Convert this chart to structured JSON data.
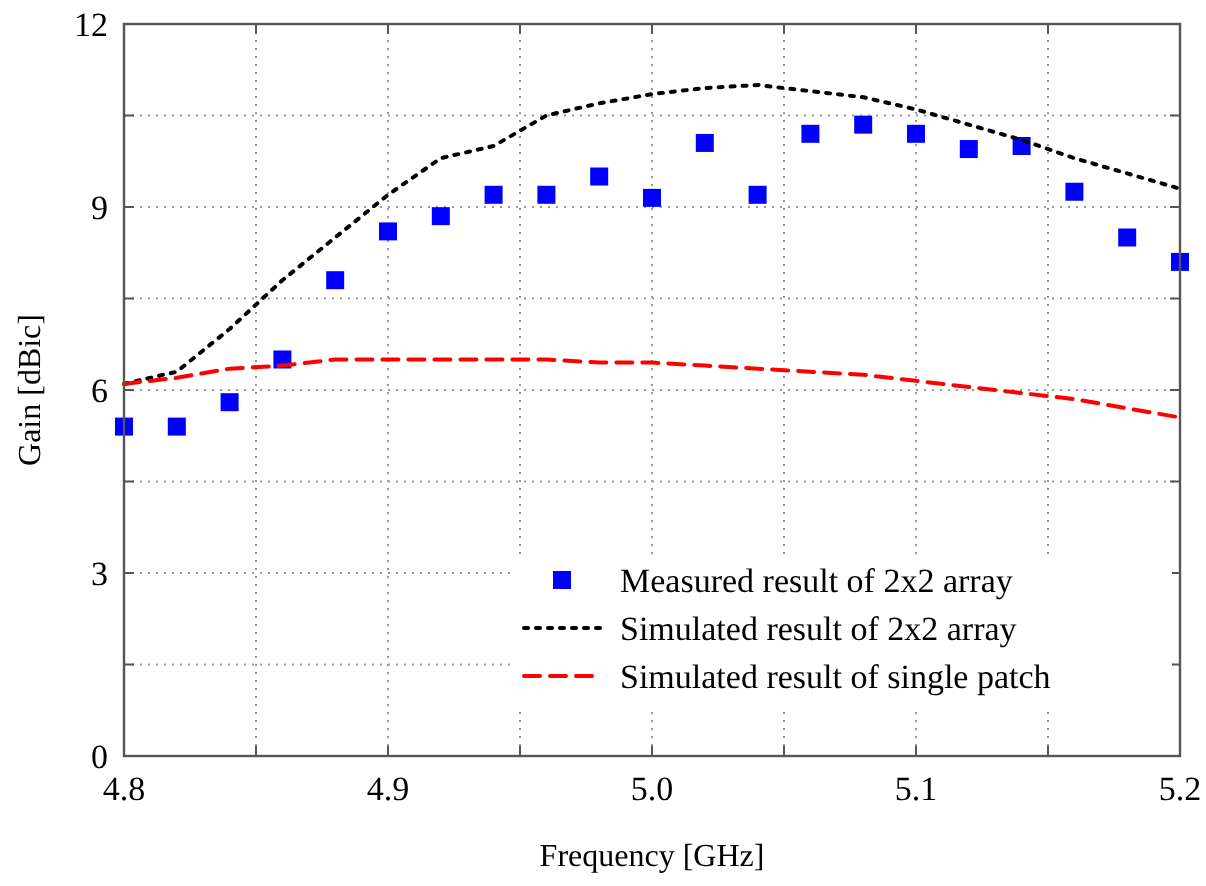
{
  "chart_data": {
    "type": "scatter",
    "xlabel": "Frequency [GHz]",
    "ylabel": "Gain [dBic]",
    "x": [
      4.8,
      4.82,
      4.84,
      4.86,
      4.88,
      4.9,
      4.92,
      4.94,
      4.96,
      4.98,
      5.0,
      5.02,
      5.04,
      5.06,
      5.08,
      5.1,
      5.12,
      5.14,
      5.16,
      5.18,
      5.2
    ],
    "series": [
      {
        "name": "Measured result of 2x2 array",
        "marker": "square",
        "color": "#0000ff",
        "values": [
          5.4,
          5.4,
          5.8,
          6.5,
          7.8,
          8.6,
          8.85,
          9.2,
          9.2,
          9.5,
          9.15,
          10.05,
          9.2,
          10.2,
          10.35,
          10.2,
          9.95,
          10.0,
          9.25,
          8.5,
          8.1
        ]
      },
      {
        "name": "Simulated result of 2x2 array",
        "type": "line",
        "line_style": "dotted",
        "color": "#000000",
        "values": [
          6.1,
          6.3,
          7.0,
          7.8,
          8.5,
          9.2,
          9.8,
          10.0,
          10.5,
          10.7,
          10.85,
          10.95,
          11.0,
          10.9,
          10.8,
          10.6,
          10.35,
          10.1,
          9.8,
          9.55,
          9.3
        ]
      },
      {
        "name": "Simulated result of single patch",
        "type": "line",
        "line_style": "dashed",
        "color": "#ff0000",
        "values": [
          6.1,
          6.2,
          6.35,
          6.4,
          6.5,
          6.5,
          6.5,
          6.5,
          6.5,
          6.45,
          6.45,
          6.4,
          6.35,
          6.3,
          6.25,
          6.15,
          6.05,
          5.95,
          5.85,
          5.7,
          5.55
        ]
      }
    ],
    "xlim": [
      4.8,
      5.2
    ],
    "xticks": [
      4.8,
      {
        "value": 4.85,
        "label": null
      },
      4.9,
      {
        "value": 4.95,
        "label": null
      },
      {
        "value": 5.0,
        "label": "5.0"
      },
      {
        "value": 5.05,
        "label": null
      },
      5.1,
      {
        "value": 5.15,
        "label": null
      },
      5.2
    ],
    "ylim": [
      0,
      12
    ],
    "yticks": [
      0,
      {
        "value": 1.5,
        "label": null
      },
      3,
      {
        "value": 4.5,
        "label": null
      },
      6,
      {
        "value": 7.5,
        "label": null
      },
      9,
      {
        "value": 10.5,
        "label": null
      },
      12
    ],
    "grid": true,
    "legend": "bottom right"
  }
}
